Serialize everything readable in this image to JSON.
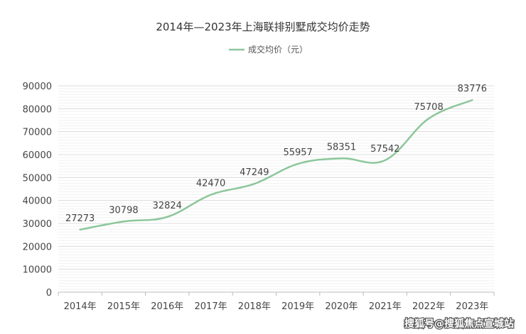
{
  "chart_data": {
    "type": "line",
    "title": "2014年—2023年上海联排别墅成交均价走势",
    "categories": [
      "2014年",
      "2015年",
      "2016年",
      "2017年",
      "2018年",
      "2019年",
      "2020年",
      "2021年",
      "2022年",
      "2023年"
    ],
    "series": [
      {
        "name": "成交均价（元）",
        "values": [
          27273,
          30798,
          32824,
          42470,
          47249,
          55957,
          58351,
          57542,
          75708,
          83776
        ],
        "color": "#8cc69b"
      }
    ],
    "yticks": [
      "0",
      "10000",
      "20000",
      "30000",
      "40000",
      "50000",
      "60000",
      "70000",
      "80000",
      "90000"
    ],
    "ylim": [
      0,
      90000
    ],
    "grid": true,
    "legend": "top-center",
    "smooth": true
  },
  "watermark": "搜狐号@搜狐焦点宣城站"
}
